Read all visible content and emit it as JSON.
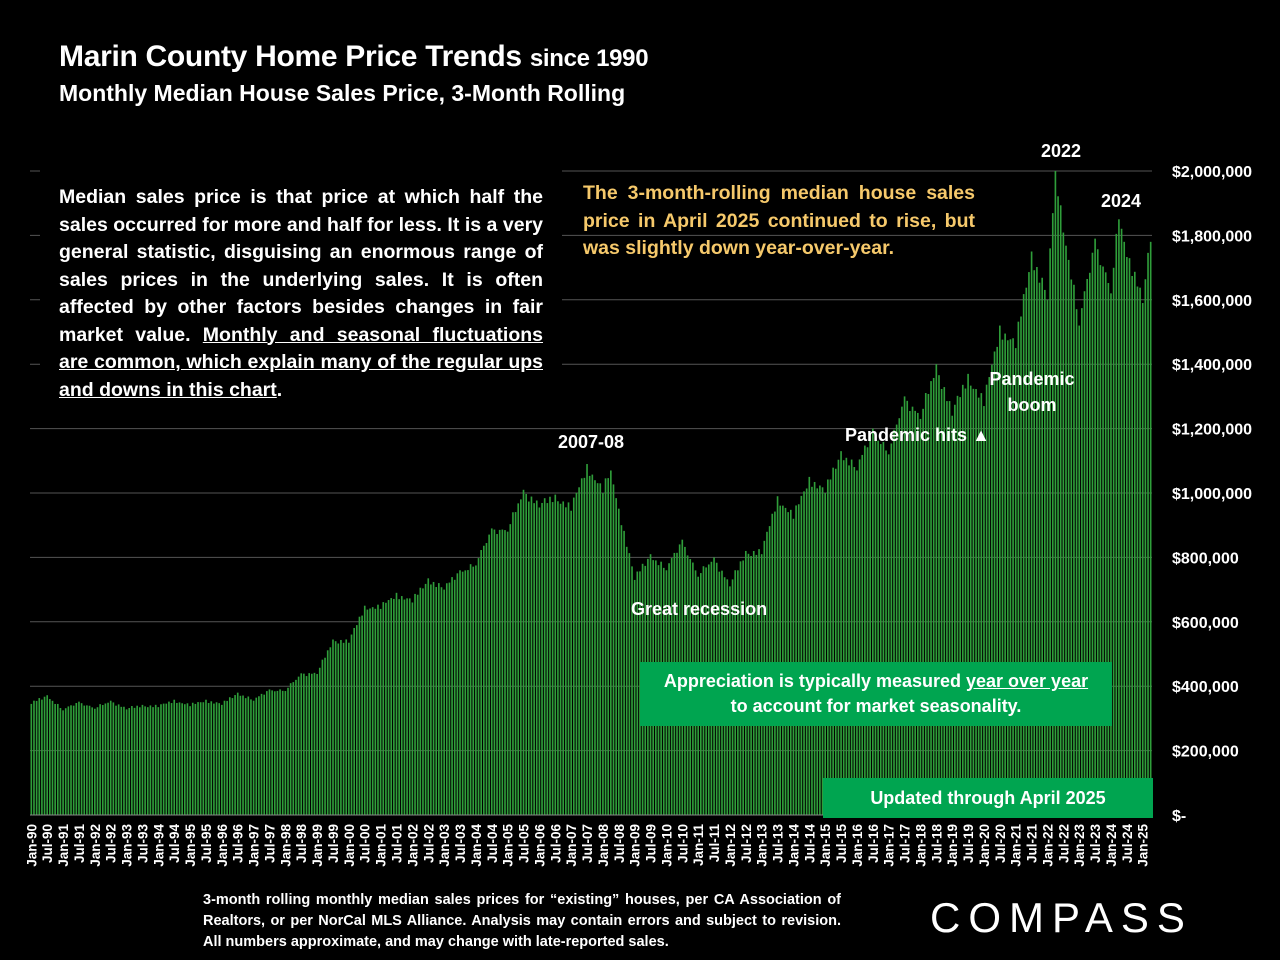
{
  "title": "Marin County Home Price Trends",
  "title_suffix": "since 1990",
  "subtitle": "Monthly Median House Sales Price, 3-Month Rolling",
  "info_text_1": "Median sales price is that price at which half the sales occurred for more and half for less. It is a very general statistic, disguising an enormous range of sales prices in the underlying sales. It is often affected by other factors besides changes in fair market value. ",
  "info_text_underlined": "Monthly and seasonal fluctuations are common, which explain many of the regular ups and downs in this chart",
  "info_text_end": ".",
  "callout": "The 3-month-rolling median house sales price in April 2025 continued to rise, but was slightly down year-over-year.",
  "annotations": {
    "label_2022": "2022",
    "label_2024": "2024",
    "label_2007": "2007-08",
    "great_recession": "Great recession",
    "pandemic_hits": "Pandemic hits",
    "pandemic_boom_1": "Pandemic",
    "pandemic_boom_2": "boom"
  },
  "appreciation_1": "Appreciation is typically measured ",
  "appreciation_u": "year over year",
  "appreciation_2": "to account for market seasonality.",
  "updated": "Updated through April 2025",
  "footnote": "3-month rolling monthly median sales prices for “existing” houses, per CA Association of Realtors, or per NorCal MLS Alliance. Analysis may contain errors and subject to revision. All numbers approximate, and may change with late-reported sales.",
  "logo": "COMPASS",
  "colors": {
    "bar": "#2f9e3a",
    "bar_dark": "#0d3a14",
    "background": "#000000",
    "callout": "#f6c96b",
    "box": "#00a550",
    "grid": "#555555"
  },
  "chart_data": {
    "type": "bar",
    "x_start": "Jan-90",
    "x_end": "Apr-25",
    "frequency": "monthly",
    "y_axis_side": "right",
    "ylim": [
      0,
      2000000
    ],
    "yticks": [
      0,
      200000,
      400000,
      600000,
      800000,
      1000000,
      1200000,
      1400000,
      1600000,
      1800000,
      2000000
    ],
    "ytick_labels": [
      "$-",
      "$200,000",
      "$400,000",
      "$600,000",
      "$800,000",
      "$1,000,000",
      "$1,200,000",
      "$1,400,000",
      "$1,600,000",
      "$1,800,000",
      "$2,000,000"
    ],
    "xtick_labels": [
      "Jan-90",
      "Jul-90",
      "Jan-91",
      "Jul-91",
      "Jan-92",
      "Jul-92",
      "Jan-93",
      "Jul-93",
      "Jan-94",
      "Jul-94",
      "Jan-95",
      "Jul-95",
      "Jan-96",
      "Jul-96",
      "Jan-97",
      "Jul-97",
      "Jan-98",
      "Jul-98",
      "Jan-99",
      "Jul-99",
      "Jan-00",
      "Jul-00",
      "Jan-01",
      "Jul-01",
      "Jan-02",
      "Jul-02",
      "Jan-03",
      "Jul-03",
      "Jan-04",
      "Jul-04",
      "Jan-05",
      "Jul-05",
      "Jan-06",
      "Jul-06",
      "Jan-07",
      "Jul-07",
      "Jan-08",
      "Jul-08",
      "Jan-09",
      "Jul-09",
      "Jan-10",
      "Jul-10",
      "Jan-11",
      "Jul-11",
      "Jan-12",
      "Jul-12",
      "Jan-13",
      "Jul-13",
      "Jan-14",
      "Jul-14",
      "Jan-15",
      "Jul-15",
      "Jan-16",
      "Jul-16",
      "Jan-17",
      "Jul-17",
      "Jan-18",
      "Jul-18",
      "Jan-19",
      "Jul-19",
      "Jan-20",
      "Jul-20",
      "Jan-21",
      "Jul-21",
      "Jan-22",
      "Jul-22",
      "Jan-23",
      "Jul-23",
      "Jan-24",
      "Jul-24",
      "Jan-25"
    ],
    "anchors": [
      [
        "Jan-90",
        345000
      ],
      [
        "Jul-90",
        372000
      ],
      [
        "Jan-91",
        325000
      ],
      [
        "Jul-91",
        352000
      ],
      [
        "Jan-92",
        330000
      ],
      [
        "Jul-92",
        355000
      ],
      [
        "Jan-93",
        328000
      ],
      [
        "Jul-93",
        342000
      ],
      [
        "Jan-94",
        335000
      ],
      [
        "Jul-94",
        358000
      ],
      [
        "Jan-95",
        338000
      ],
      [
        "Jul-95",
        358000
      ],
      [
        "Jan-96",
        342000
      ],
      [
        "Jul-96",
        380000
      ],
      [
        "Jan-97",
        355000
      ],
      [
        "Jul-97",
        390000
      ],
      [
        "Jan-98",
        385000
      ],
      [
        "Jul-98",
        440000
      ],
      [
        "Jan-99",
        438000
      ],
      [
        "Jul-99",
        545000
      ],
      [
        "Jan-00",
        535000
      ],
      [
        "Jul-00",
        650000
      ],
      [
        "Jan-01",
        640000
      ],
      [
        "Jul-01",
        690000
      ],
      [
        "Jan-02",
        660000
      ],
      [
        "Jul-02",
        735000
      ],
      [
        "Jan-03",
        700000
      ],
      [
        "Jul-03",
        760000
      ],
      [
        "Jan-04",
        775000
      ],
      [
        "Jul-04",
        890000
      ],
      [
        "Jan-05",
        880000
      ],
      [
        "Jul-05",
        1010000
      ],
      [
        "Jan-06",
        955000
      ],
      [
        "Jul-06",
        995000
      ],
      [
        "Jan-07",
        945000
      ],
      [
        "Jul-07",
        1090000
      ],
      [
        "Jan-08",
        1000000
      ],
      [
        "Apr-08",
        1070000
      ],
      [
        "Jan-09",
        730000
      ],
      [
        "Jul-09",
        810000
      ],
      [
        "Jan-10",
        760000
      ],
      [
        "Jul-10",
        855000
      ],
      [
        "Jan-11",
        740000
      ],
      [
        "Jul-11",
        800000
      ],
      [
        "Jan-12",
        710000
      ],
      [
        "Jul-12",
        820000
      ],
      [
        "Jan-13",
        810000
      ],
      [
        "Jul-13",
        990000
      ],
      [
        "Jan-14",
        920000
      ],
      [
        "Jul-14",
        1050000
      ],
      [
        "Jan-15",
        1000000
      ],
      [
        "Jul-15",
        1130000
      ],
      [
        "Jan-16",
        1070000
      ],
      [
        "Jul-16",
        1200000
      ],
      [
        "Jan-17",
        1120000
      ],
      [
        "Jul-17",
        1300000
      ],
      [
        "Jan-18",
        1230000
      ],
      [
        "Jul-18",
        1400000
      ],
      [
        "Jan-19",
        1240000
      ],
      [
        "Jul-19",
        1370000
      ],
      [
        "Jan-20",
        1270000
      ],
      [
        "Jul-20",
        1520000
      ],
      [
        "Jan-21",
        1450000
      ],
      [
        "Jul-21",
        1750000
      ],
      [
        "Jan-22",
        1600000
      ],
      [
        "Apr-22",
        2000000
      ],
      [
        "Jan-23",
        1520000
      ],
      [
        "Jul-23",
        1790000
      ],
      [
        "Jan-24",
        1620000
      ],
      [
        "Apr-24",
        1850000
      ],
      [
        "Jan-25",
        1590000
      ],
      [
        "Apr-25",
        1780000
      ]
    ]
  }
}
